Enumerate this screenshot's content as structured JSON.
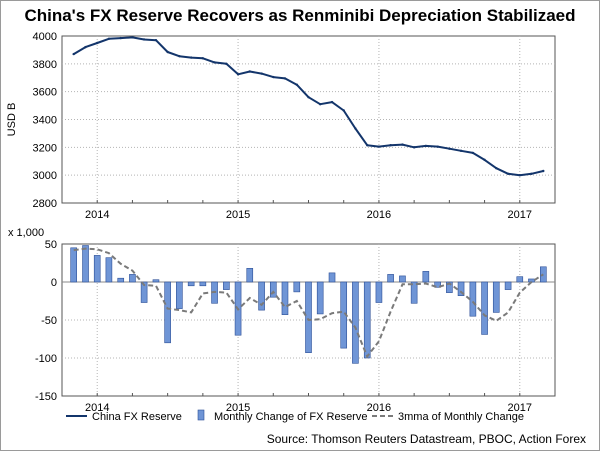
{
  "title": "China's FX Reserve Recovers as Renminibi Depreciation Stabilizaed",
  "source": "Source: Thomson Reuters Datastream, PBOC, Action Forex",
  "colors": {
    "line": "#13356b",
    "bar": "#6f95d6",
    "bar_edge": "#2c4f96",
    "ma": "#7a7a7a",
    "grid": "#b4b4b4"
  },
  "chart_data": [
    {
      "type": "line",
      "title": "China's FX Reserve",
      "ylabel": "USD B",
      "ylim": [
        2800,
        4000
      ],
      "yticks": [
        2800,
        3000,
        3200,
        3400,
        3600,
        3800,
        4000
      ],
      "xlim": [
        2013.75,
        2017.25
      ],
      "xticks": [
        2014,
        2015,
        2016,
        2017
      ],
      "xticklabels": [
        "2014",
        "2015",
        "2016",
        "2017"
      ],
      "series": [
        {
          "name": "China FX Reserve",
          "x": [
            2013.833,
            2013.917,
            2014.0,
            2014.083,
            2014.167,
            2014.25,
            2014.333,
            2014.417,
            2014.5,
            2014.583,
            2014.667,
            2014.75,
            2014.833,
            2014.917,
            2015.0,
            2015.083,
            2015.167,
            2015.25,
            2015.333,
            2015.417,
            2015.5,
            2015.583,
            2015.667,
            2015.75,
            2015.833,
            2015.917,
            2016.0,
            2016.083,
            2016.167,
            2016.25,
            2016.333,
            2016.417,
            2016.5,
            2016.583,
            2016.667,
            2016.75,
            2016.833,
            2016.917,
            2017.0,
            2017.083,
            2017.167
          ],
          "y": [
            3870,
            3920,
            3950,
            3980,
            3985,
            3990,
            3975,
            3970,
            3885,
            3855,
            3845,
            3840,
            3810,
            3800,
            3725,
            3745,
            3730,
            3705,
            3695,
            3650,
            3560,
            3510,
            3525,
            3465,
            3335,
            3215,
            3205,
            3215,
            3220,
            3200,
            3210,
            3205,
            3190,
            3175,
            3160,
            3110,
            3050,
            3010,
            3000,
            3010,
            3030
          ]
        }
      ]
    },
    {
      "type": "bar",
      "title": "Monthly Change of FX Reserve",
      "ylabel": "x 1,000",
      "ylim": [
        -150,
        50
      ],
      "yticks": [
        -150,
        -100,
        -50,
        0,
        50
      ],
      "xlim": [
        2013.75,
        2017.25
      ],
      "xticks": [
        2014,
        2015,
        2016,
        2017
      ],
      "xticklabels": [
        "2014",
        "2015",
        "2016",
        "2017"
      ],
      "legend": [
        "China FX Reserve",
        "Monthly Change of FX Reserve",
        "3mma of Monthly Change"
      ],
      "series": [
        {
          "name": "Monthly Change of FX Reserve",
          "x": [
            2013.833,
            2013.917,
            2014.0,
            2014.083,
            2014.167,
            2014.25,
            2014.333,
            2014.417,
            2014.5,
            2014.583,
            2014.667,
            2014.75,
            2014.833,
            2014.917,
            2015.0,
            2015.083,
            2015.167,
            2015.25,
            2015.333,
            2015.417,
            2015.5,
            2015.583,
            2015.667,
            2015.75,
            2015.833,
            2015.917,
            2016.0,
            2016.083,
            2016.167,
            2016.25,
            2016.333,
            2016.417,
            2016.5,
            2016.583,
            2016.667,
            2016.75,
            2016.833,
            2016.917,
            2017.0,
            2017.083,
            2017.167
          ],
          "y": [
            45,
            48,
            35,
            32,
            5,
            10,
            -27,
            3,
            -80,
            -35,
            -5,
            -5,
            -28,
            -10,
            -70,
            18,
            -37,
            -20,
            -43,
            -13,
            -93,
            -42,
            12,
            -87,
            -107,
            -100,
            -27,
            10,
            8,
            -28,
            14,
            -7,
            -14,
            -18,
            -45,
            -69,
            -40,
            -10,
            7,
            4,
            20
          ]
        },
        {
          "name": "3mma of Monthly Change",
          "x": [
            2013.833,
            2013.917,
            2014.0,
            2014.083,
            2014.167,
            2014.25,
            2014.333,
            2014.417,
            2014.5,
            2014.583,
            2014.667,
            2014.75,
            2014.833,
            2014.917,
            2015.0,
            2015.083,
            2015.167,
            2015.25,
            2015.333,
            2015.417,
            2015.5,
            2015.583,
            2015.667,
            2015.75,
            2015.833,
            2015.917,
            2016.0,
            2016.083,
            2016.167,
            2016.25,
            2016.333,
            2016.417,
            2016.5,
            2016.583,
            2016.667,
            2016.75,
            2016.833,
            2016.917,
            2017.0,
            2017.083,
            2017.167
          ],
          "y": [
            42,
            44,
            43,
            38,
            24,
            15,
            -4,
            -5,
            -35,
            -37,
            -40,
            -15,
            -13,
            -14,
            -36,
            -21,
            -30,
            -13,
            -33,
            -25,
            -50,
            -49,
            -41,
            -39,
            -60,
            -98,
            -78,
            -39,
            -3,
            -3,
            -2,
            -7,
            -2,
            -13,
            -26,
            -44,
            -51,
            -40,
            -14,
            0,
            10
          ]
        }
      ]
    }
  ]
}
